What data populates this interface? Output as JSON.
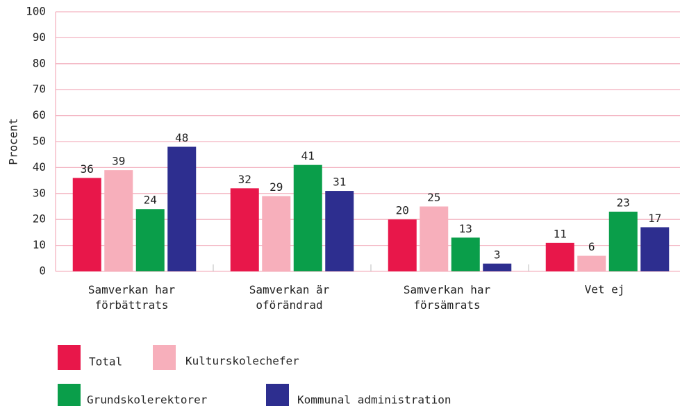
{
  "chart_data": {
    "type": "bar",
    "y_label": "Procent",
    "categories": [
      "Samverkan har\nförbättrats",
      "Samverkan är\noförändrad",
      "Samverkan har\nförsämrats",
      "Vet ej"
    ],
    "series": [
      {
        "name": "Total",
        "color": "#e8174a",
        "values": [
          36,
          32,
          20,
          11
        ]
      },
      {
        "name": "Kulturskolechefer",
        "color": "#f7afbb",
        "values": [
          39,
          29,
          25,
          6
        ]
      },
      {
        "name": "Grundskolerektorer",
        "color": "#0a9e4a",
        "values": [
          24,
          41,
          13,
          23
        ]
      },
      {
        "name": "Kommunal administration",
        "color": "#2d2e8f",
        "values": [
          48,
          31,
          3,
          17
        ]
      }
    ],
    "ylim": [
      0,
      100
    ],
    "yticks": [
      0,
      10,
      20,
      30,
      40,
      50,
      60,
      70,
      80,
      90,
      100
    ],
    "grid": true
  }
}
